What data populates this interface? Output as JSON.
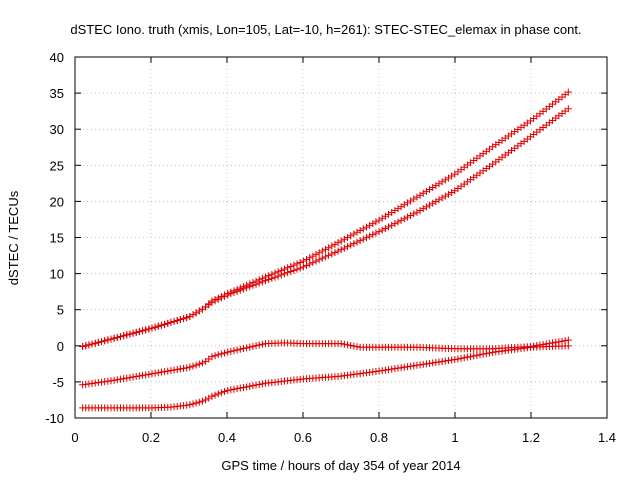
{
  "chart_data": {
    "type": "scatter",
    "title": "dSTEC Iono. truth (xmis, Lon=105, Lat=-10, h=261): STEC-STEC_elemax in phase cont.",
    "xlabel": "GPS time / hours of day 354 of year 2014",
    "ylabel": "dSTEC  / TECUs",
    "xlim": [
      0,
      1.4
    ],
    "ylim": [
      -10,
      40
    ],
    "xticks": [
      0,
      0.2,
      0.4,
      0.6,
      0.8,
      1,
      1.2,
      1.4
    ],
    "xtick_labels": [
      "0",
      "0.2",
      "0.4",
      "0.6",
      "0.8",
      "1",
      "1.2",
      "1.4"
    ],
    "yticks": [
      -10,
      -5,
      0,
      5,
      10,
      15,
      20,
      25,
      30,
      35,
      40
    ],
    "ytick_labels": [
      "-10",
      "-5",
      "0",
      "5",
      "10",
      "15",
      "20",
      "25",
      "30",
      "35",
      "40"
    ],
    "grid": true,
    "marker_color": "#e00000",
    "marker_interval_hours": 0.0083,
    "series": [
      {
        "name": "series-1",
        "x": [
          0.02,
          0.1,
          0.2,
          0.3,
          0.34,
          0.36,
          0.4,
          0.5,
          0.6,
          0.7,
          0.8,
          0.9,
          1.0,
          1.1,
          1.2,
          1.3
        ],
        "y": [
          -0.1,
          1.0,
          2.4,
          4.0,
          5.2,
          6.2,
          7.2,
          9.5,
          11.7,
          14.5,
          17.4,
          20.6,
          23.8,
          27.6,
          31.2,
          35.2
        ]
      },
      {
        "name": "series-2",
        "x": [
          0.02,
          0.1,
          0.2,
          0.3,
          0.34,
          0.36,
          0.4,
          0.5,
          0.6,
          0.7,
          0.8,
          0.9,
          1.0,
          1.1,
          1.2,
          1.3
        ],
        "y": [
          -0.1,
          1.0,
          2.4,
          4.0,
          5.2,
          6.0,
          7.0,
          9.0,
          10.9,
          13.3,
          15.8,
          18.5,
          21.5,
          25.2,
          29.0,
          32.9
        ]
      },
      {
        "name": "series-3",
        "x": [
          0.02,
          0.1,
          0.2,
          0.3,
          0.34,
          0.36,
          0.4,
          0.45,
          0.5,
          0.55,
          0.6,
          0.7,
          0.75,
          0.8,
          0.9,
          1.0,
          1.1,
          1.2,
          1.3
        ],
        "y": [
          -5.4,
          -4.8,
          -3.9,
          -3.0,
          -2.3,
          -1.5,
          -0.9,
          -0.3,
          0.3,
          0.4,
          0.3,
          0.3,
          -0.2,
          -0.2,
          -0.2,
          -0.4,
          -0.4,
          -0.1,
          0.8
        ]
      },
      {
        "name": "series-4",
        "x": [
          0.02,
          0.1,
          0.2,
          0.25,
          0.3,
          0.34,
          0.36,
          0.4,
          0.45,
          0.5,
          0.6,
          0.7,
          0.8,
          0.9,
          1.0,
          1.1,
          1.2,
          1.3
        ],
        "y": [
          -8.6,
          -8.6,
          -8.6,
          -8.5,
          -8.2,
          -7.6,
          -7.0,
          -6.2,
          -5.7,
          -5.2,
          -4.6,
          -4.2,
          -3.5,
          -2.7,
          -1.9,
          -0.9,
          -0.2,
          0.0
        ]
      }
    ]
  }
}
